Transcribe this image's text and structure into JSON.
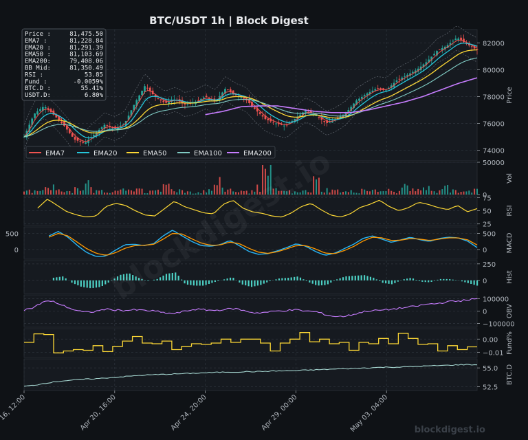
{
  "header": {
    "title": "BTC/USDT  1h  |  Block Digest"
  },
  "watermark": {
    "center": "blockdigest.io",
    "corner": "blockdigest.io"
  },
  "info_box": {
    "rows": [
      {
        "label": "Price :",
        "value": "81,475.50"
      },
      {
        "label": "EMA7  :",
        "value": "81,228.84"
      },
      {
        "label": "EMA20 :",
        "value": "81,291.39"
      },
      {
        "label": "EMA50 :",
        "value": "81,103.69"
      },
      {
        "label": "EMA200:",
        "value": "79,408.06"
      },
      {
        "label": "BB Mid:",
        "value": "81,350.49"
      },
      {
        "label": "RSI   :",
        "value": "53.85"
      },
      {
        "label": "Fund  :",
        "value": "-0.0059%"
      },
      {
        "label": "BTC.D :",
        "value": "55.41%"
      },
      {
        "label": "USDT.D:",
        "value": "6.80%"
      }
    ]
  },
  "colors": {
    "background": "#0f1216",
    "panel": "#161a20",
    "grid": "#2a3038",
    "up": "#26a69a",
    "down": "#ef5350",
    "ema7": "#ef5350",
    "ema20": "#26c6da",
    "ema50": "#fdd835",
    "ema100": "#80cbc4",
    "ema200": "#c77dff",
    "macd": "#29b6f6",
    "signal": "#ff9800",
    "hist": "#4dd0c4",
    "obv": "#c77dff",
    "fund": "#fdd835",
    "btcd": "#a5d6d0"
  },
  "chart_data": [
    {
      "type": "candlestick",
      "panel": "price",
      "ylabel": "Price",
      "ylim": [
        73200,
        83000
      ],
      "yticks": [
        "74000",
        "76000",
        "78000",
        "80000",
        "82000"
      ],
      "legend": [
        "EMA7",
        "EMA20",
        "EMA50",
        "EMA100",
        "EMA200"
      ],
      "legend_position": "bottom-left",
      "series_ema200": {
        "name": "EMA200",
        "x_start": 0.4,
        "values": [
          76650,
          76900,
          77250,
          77300,
          77300,
          77100,
          76900,
          76800,
          76800,
          77000,
          77300,
          77600,
          78000,
          78500,
          79000,
          79400
        ]
      },
      "close_approx": [
        75000,
        76700,
        77300,
        76600,
        75800,
        74800,
        74500,
        75200,
        75900,
        75600,
        76000,
        77500,
        78800,
        78000,
        77500,
        77800,
        77400,
        77600,
        78000,
        77600,
        78600,
        78100,
        77800,
        77000,
        76300,
        76000,
        75800,
        76400,
        77000,
        76600,
        76000,
        76300,
        76800,
        77700,
        78200,
        78600,
        78500,
        79200,
        79600,
        80000,
        80600,
        81400,
        81800,
        82400,
        81900,
        81475.5
      ]
    },
    {
      "type": "bar",
      "panel": "volume",
      "ylabel": "Vol",
      "ylim": [
        0,
        50000
      ],
      "yticks": [
        "0",
        "50000"
      ],
      "values_approx": [
        8000,
        12000,
        20000,
        9000,
        6000,
        18000,
        32000,
        7000,
        5000,
        11000,
        9000,
        14000,
        6000,
        8000,
        22000,
        10000,
        7000,
        5000,
        9000,
        26000,
        12000,
        8000,
        6000,
        15000,
        45000,
        10000,
        7000,
        5000,
        8000,
        30000,
        11000,
        9000,
        6000,
        7000,
        12000,
        8000,
        10000,
        6000,
        20000,
        9000,
        14000,
        7000,
        25000,
        8000,
        11000,
        9000
      ]
    },
    {
      "type": "line",
      "panel": "rsi",
      "ylabel": "RSI",
      "ylim": [
        22,
        78
      ],
      "yticks": [
        "25",
        "50",
        "75"
      ],
      "values": [
        55,
        72,
        60,
        48,
        42,
        38,
        40,
        58,
        64,
        60,
        50,
        42,
        40,
        54,
        68,
        58,
        52,
        46,
        44,
        62,
        70,
        55,
        48,
        45,
        40,
        38,
        46,
        58,
        64,
        52,
        42,
        38,
        44,
        56,
        62,
        70,
        58,
        50,
        56,
        66,
        62,
        56,
        52,
        60,
        48,
        54
      ]
    },
    {
      "type": "line",
      "panel": "macd",
      "ylabel": "MACD",
      "ylim": [
        -300,
        700
      ],
      "yticks": [
        "0",
        "500"
      ],
      "series": [
        {
          "name": "MACD",
          "values": [
            420,
            560,
            380,
            120,
            -100,
            -220,
            -200,
            -20,
            150,
            160,
            120,
            180,
            420,
            600,
            420,
            250,
            120,
            100,
            150,
            280,
            120,
            -60,
            -150,
            -130,
            -40,
            60,
            180,
            100,
            -60,
            -180,
            -120,
            20,
            160,
            340,
            420,
            320,
            220,
            300,
            380,
            300,
            250,
            340,
            380,
            360,
            260,
            60
          ]
        },
        {
          "name": "Signal",
          "values": [
            380,
            500,
            420,
            220,
            20,
            -120,
            -180,
            -100,
            40,
            120,
            130,
            160,
            320,
            500,
            480,
            330,
            200,
            130,
            140,
            230,
            180,
            40,
            -80,
            -120,
            -70,
            20,
            120,
            120,
            20,
            -110,
            -130,
            -40,
            90,
            260,
            380,
            360,
            280,
            290,
            340,
            320,
            280,
            320,
            360,
            360,
            300,
            140
          ]
        }
      ]
    },
    {
      "type": "bar",
      "panel": "macd_hist",
      "ylabel": "Hist",
      "ylim": [
        -200,
        300
      ],
      "yticks": [
        "0",
        "250"
      ],
      "values": [
        40,
        60,
        -40,
        -100,
        -120,
        -100,
        -20,
        80,
        110,
        40,
        -10,
        20,
        100,
        120,
        -60,
        -80,
        -80,
        -30,
        10,
        50,
        -60,
        -100,
        -70,
        -10,
        30,
        40,
        60,
        -20,
        -80,
        -70,
        10,
        60,
        70,
        80,
        40,
        -40,
        -60,
        10,
        40,
        -20,
        -30,
        20,
        20,
        0,
        -40,
        -80
      ]
    },
    {
      "type": "line",
      "panel": "obv",
      "ylabel": "OBV",
      "ylim": [
        -130000,
        130000
      ],
      "yticks": [
        "−100000",
        "0",
        "100000"
      ],
      "values": [
        10000,
        30000,
        80000,
        75000,
        40000,
        10000,
        -10000,
        -5000,
        15000,
        10000,
        5000,
        10000,
        5000,
        0,
        -15000,
        -20000,
        0,
        15000,
        10000,
        5000,
        15000,
        20000,
        0,
        -15000,
        -10000,
        0,
        5000,
        10000,
        0,
        -5000,
        -30000,
        -45000,
        -40000,
        -20000,
        0,
        5000,
        10000,
        20000,
        30000,
        40000,
        55000,
        60000,
        75000,
        80000,
        90000,
        100000
      ]
    },
    {
      "type": "line",
      "panel": "funding",
      "ylabel": "Fund%",
      "ylim": [
        -0.014,
        0.008
      ],
      "yticks": [
        "−0.01",
        "0.00"
      ],
      "values": [
        -0.0025,
        0.004,
        0.0035,
        -0.0105,
        -0.009,
        -0.008,
        -0.0085,
        -0.005,
        -0.0095,
        -0.0055,
        -0.0015,
        0.002,
        -0.003,
        -0.0035,
        -0.0015,
        -0.008,
        -0.0055,
        -0.0035,
        -0.004,
        -0.003,
        0.0,
        -0.0025,
        0.0,
        0.0,
        -0.003,
        -0.009,
        -0.003,
        0.0,
        0.005,
        -0.002,
        0.0,
        -0.0035,
        -0.0025,
        -0.0085,
        -0.0025,
        -0.0035,
        0.0005,
        -0.0035,
        0.0045,
        0.0005,
        -0.004,
        -0.0035,
        -0.009,
        -0.005,
        -0.008,
        -0.0059
      ]
    },
    {
      "type": "line",
      "panel": "btcd",
      "ylabel": "BTC.D",
      "ylim": [
        52.0,
        56.2
      ],
      "yticks": [
        "52.5",
        "55.0"
      ],
      "values": [
        52.55,
        52.7,
        52.95,
        53.15,
        53.3,
        53.4,
        53.5,
        53.55,
        53.65,
        53.75,
        53.85,
        53.95,
        54.05,
        54.1,
        54.15,
        54.2,
        54.25,
        54.3,
        54.35,
        54.4,
        54.45,
        54.45,
        54.5,
        54.5,
        54.55,
        54.6,
        54.6,
        54.65,
        54.7,
        54.75,
        54.8,
        54.85,
        54.9,
        54.95,
        55.0,
        55.05,
        55.1,
        55.1,
        55.15,
        55.2,
        55.25,
        55.3,
        55.35,
        55.4,
        55.45,
        55.41
      ]
    }
  ],
  "x_axis": {
    "ticks": [
      {
        "label": "Apr 16, 12:00",
        "pos": 0.0
      },
      {
        "label": "Apr 20, 16:00",
        "pos": 0.2
      },
      {
        "label": "Apr 24, 20:00",
        "pos": 0.4
      },
      {
        "label": "Apr 29, 00:00",
        "pos": 0.6
      },
      {
        "label": "May 03, 04:00",
        "pos": 0.8
      }
    ]
  }
}
